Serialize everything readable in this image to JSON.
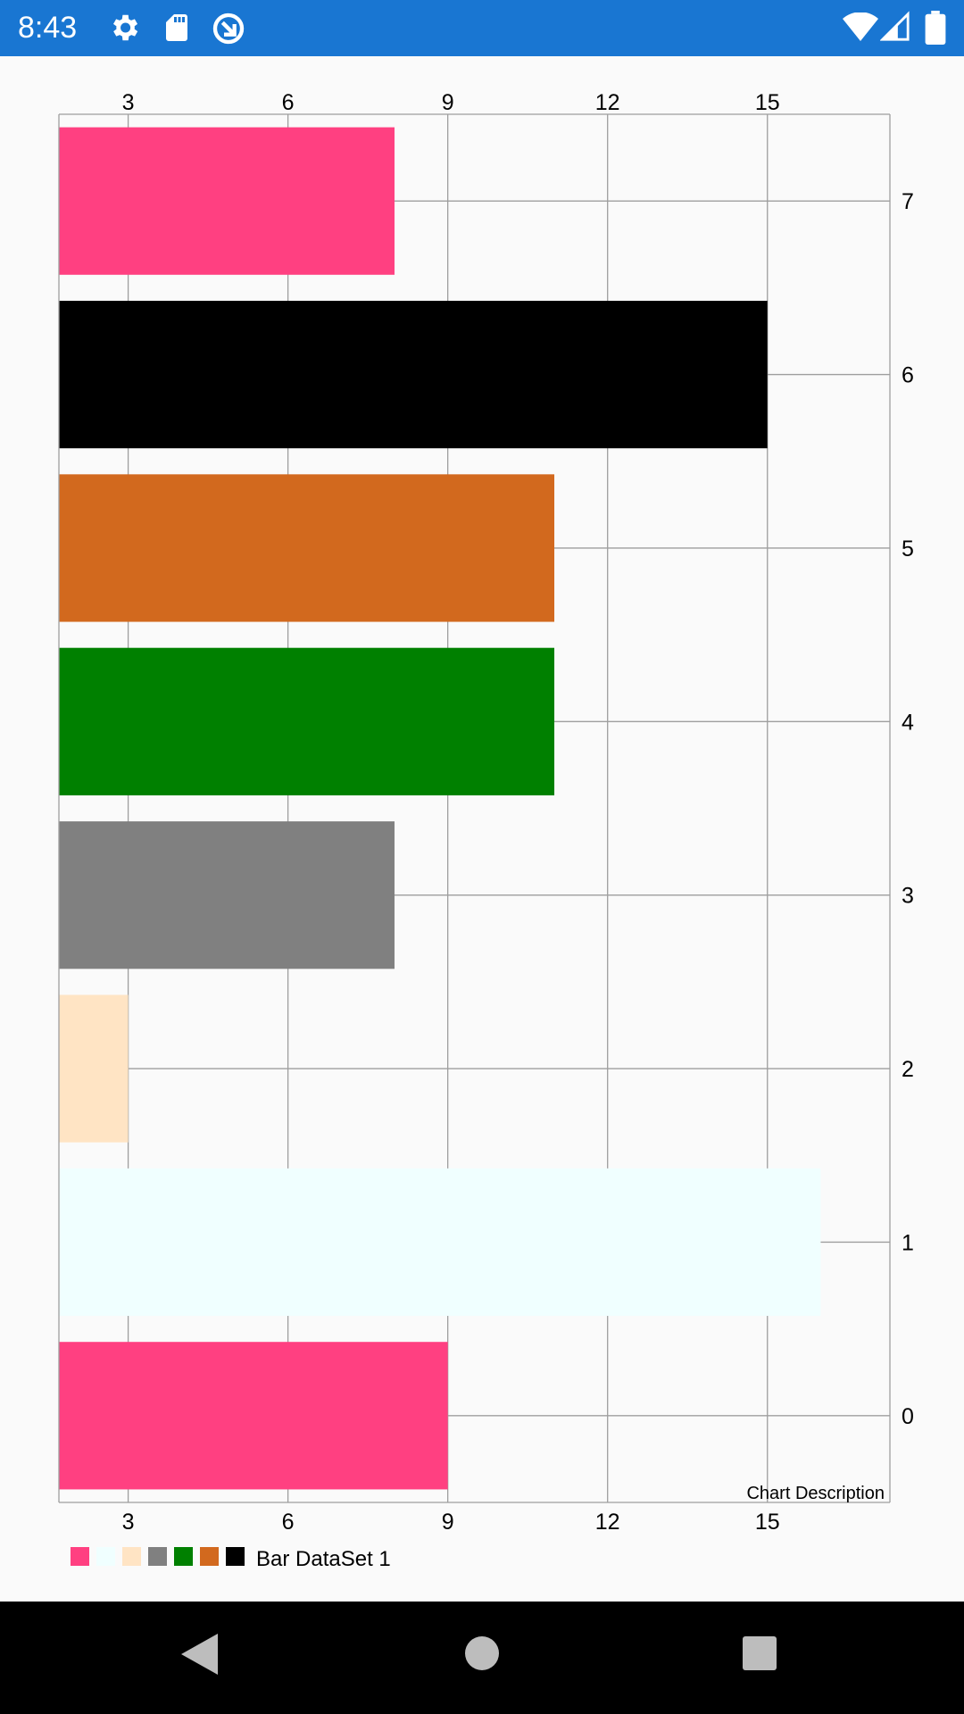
{
  "status_bar": {
    "time": "8:43",
    "left_icons": [
      "settings-icon",
      "sd-card-icon",
      "sync-icon"
    ],
    "right_icons": [
      "wifi-icon",
      "signal-icon",
      "battery-icon"
    ]
  },
  "chart_data": {
    "type": "bar",
    "orientation": "horizontal",
    "categories": [
      "0",
      "1",
      "2",
      "3",
      "4",
      "5",
      "6",
      "7"
    ],
    "series": [
      {
        "name": "Bar DataSet 1",
        "values": [
          9,
          16,
          3,
          8,
          11,
          11,
          15,
          8
        ],
        "colors": [
          "#ff4081",
          "#f0ffff",
          "#ffe4c4",
          "#808080",
          "#008000",
          "#d2691e",
          "#000000",
          "#ff4081"
        ]
      }
    ],
    "value_axis": {
      "min": 1.7,
      "max": 17.3,
      "ticks": [
        3,
        6,
        9,
        12,
        15
      ],
      "positions": [
        "top",
        "bottom"
      ]
    },
    "category_axis": {
      "position": "right",
      "ticks": [
        "0",
        "1",
        "2",
        "3",
        "4",
        "5",
        "6",
        "7"
      ]
    },
    "grid": true,
    "description": "Chart Description",
    "legend": {
      "placement": "bottom-left",
      "label": "Bar DataSet 1",
      "swatches": [
        "#ff4081",
        "#f0ffff",
        "#ffe4c4",
        "#808080",
        "#008000",
        "#d2691e",
        "#000000"
      ]
    }
  },
  "nav_bar": {
    "buttons": [
      "back-icon",
      "home-icon",
      "recents-icon"
    ]
  }
}
